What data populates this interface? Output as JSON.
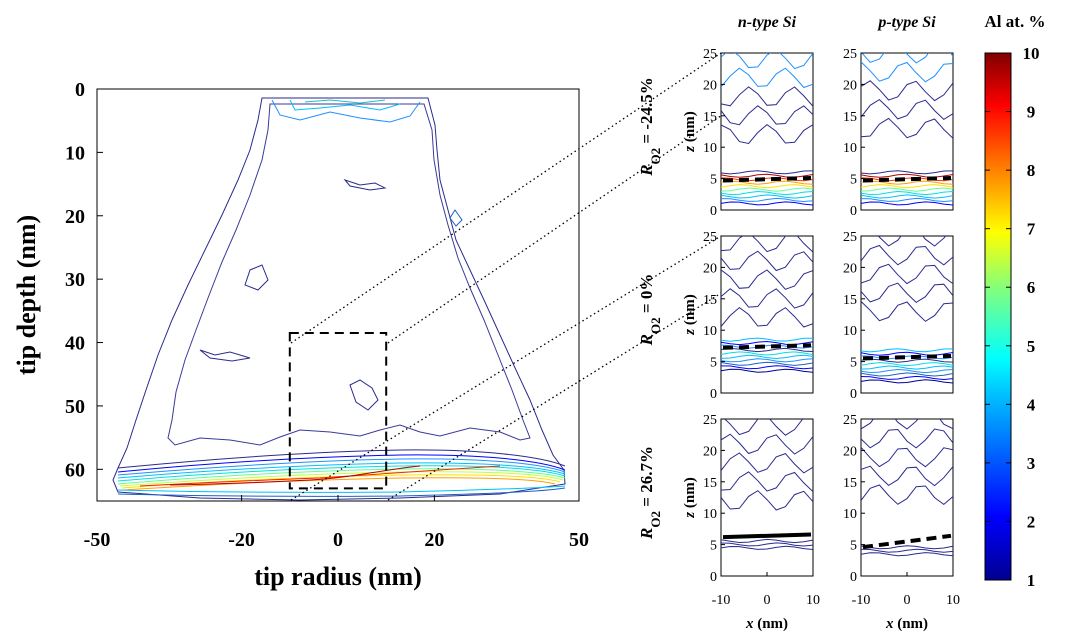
{
  "colorbar": {
    "title": "Al at. %",
    "ticks": [
      "1",
      "2",
      "3",
      "4",
      "5",
      "6",
      "7",
      "8",
      "9",
      "10"
    ],
    "colormap": [
      "#00008F",
      "#0000FF",
      "#0080FF",
      "#00FFFF",
      "#80FF80",
      "#FFFF00",
      "#FF8000",
      "#FF0000",
      "#800000"
    ]
  },
  "main_panel": {
    "xlabel": "tip radius (nm)",
    "ylabel": "tip depth (nm)",
    "xticks": [
      "-50",
      "-20",
      "0",
      "20",
      "50"
    ],
    "yticks": [
      "0",
      "10",
      "20",
      "30",
      "40",
      "50",
      "60"
    ]
  },
  "columns": [
    "n-type Si",
    "p-type Si"
  ],
  "rows": [
    {
      "label_sub": "O2",
      "label_value": "= -24.5%"
    },
    {
      "label_sub": "O2",
      "label_value": "= 0%"
    },
    {
      "label_sub": "O2",
      "label_value": "= 26.7%"
    }
  ],
  "small_panels": {
    "xlabel": "x (nm)",
    "ylabel": "z (nm)",
    "xticks": [
      "-10",
      "0",
      "10"
    ],
    "yticks": [
      "0",
      "5",
      "10",
      "15",
      "20",
      "25"
    ]
  },
  "chart_data": {
    "type": "contour",
    "main": {
      "xlim": [
        -50,
        50
      ],
      "ylim": [
        65,
        0
      ],
      "levels": [
        1,
        2,
        3,
        4,
        5,
        6,
        7,
        8,
        9,
        10
      ],
      "roi_box": {
        "x": [
          -10,
          10
        ],
        "y": [
          38.5,
          63
        ]
      },
      "interface_depth": 59
    },
    "small": {
      "xlim": [
        -10,
        10
      ],
      "ylim": [
        0,
        25
      ],
      "interface_z": [
        {
          "n": 5.0,
          "p": 5.0
        },
        {
          "n": 7.5,
          "p": 5.8
        },
        {
          "n": 6.5,
          "p": 5.5
        }
      ],
      "interface_style": [
        {
          "n": "dashed",
          "p": "dashed"
        },
        {
          "n": "dashed",
          "p": "dashed"
        },
        {
          "n": "solid",
          "p": "dashed"
        }
      ]
    }
  }
}
